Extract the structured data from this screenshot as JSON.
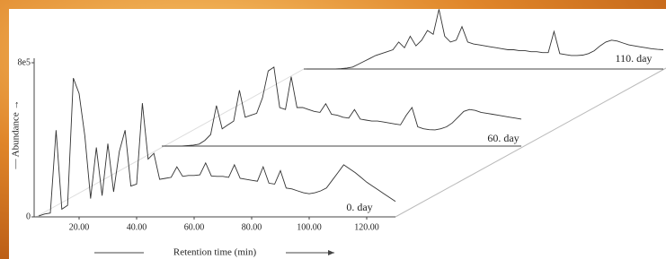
{
  "chart_data": {
    "type": "line",
    "xlabel": "Retention time (min)",
    "ylabel": "— Abundance →",
    "xlim": [
      5,
      130
    ],
    "ylim": [
      0,
      800000
    ],
    "xticks": [
      {
        "value": 20,
        "label": "20.00"
      },
      {
        "value": 40,
        "label": "40.00"
      },
      {
        "value": 60,
        "label": "60.00"
      },
      {
        "value": 80,
        "label": "80.00"
      },
      {
        "value": 100,
        "label": "100.00"
      },
      {
        "value": 120,
        "label": "120.00"
      }
    ],
    "yticks": [
      0,
      {
        "value": 800000,
        "label": "8e5"
      }
    ],
    "x": [
      6,
      8,
      10,
      12,
      14,
      16,
      18,
      20,
      22,
      24,
      26,
      28,
      30,
      32,
      34,
      36,
      38,
      40,
      42,
      44,
      46,
      48,
      50,
      52,
      54,
      56,
      58,
      60,
      62,
      64,
      66,
      68,
      70,
      72,
      74,
      76,
      78,
      80,
      82,
      84,
      86,
      88,
      90,
      92,
      94,
      96,
      98,
      100,
      102,
      104,
      106,
      108,
      110,
      112,
      114,
      116,
      118,
      120,
      122,
      124,
      126,
      128,
      130
    ],
    "series": [
      {
        "name": "0. day",
        "color": "#333333",
        "values": [
          5000,
          15000,
          20000,
          450000,
          40000,
          60000,
          720000,
          640000,
          420000,
          95000,
          360000,
          110000,
          380000,
          130000,
          340000,
          450000,
          160000,
          170000,
          590000,
          300000,
          330000,
          195000,
          200000,
          205000,
          260000,
          210000,
          215000,
          215000,
          218000,
          280000,
          212000,
          210000,
          210000,
          205000,
          270000,
          200000,
          195000,
          190000,
          185000,
          260000,
          175000,
          170000,
          240000,
          150000,
          145000,
          135000,
          125000,
          120000,
          125000,
          135000,
          150000,
          190000,
          230000,
          270000,
          250000,
          230000,
          205000,
          180000,
          160000,
          140000,
          120000,
          100000,
          80000
        ]
      },
      {
        "name": "60. day",
        "color": "#333333",
        "values": [
          0,
          0,
          0,
          0,
          3000,
          5000,
          10000,
          30000,
          60000,
          210000,
          90000,
          110000,
          130000,
          290000,
          150000,
          160000,
          170000,
          250000,
          390000,
          410000,
          200000,
          190000,
          360000,
          200000,
          200000,
          190000,
          180000,
          175000,
          220000,
          165000,
          160000,
          150000,
          145000,
          190000,
          140000,
          135000,
          130000,
          130000,
          125000,
          120000,
          115000,
          110000,
          160000,
          200000,
          100000,
          90000,
          85000,
          84000,
          90000,
          100000,
          120000,
          150000,
          180000,
          190000,
          185000,
          175000,
          170000,
          165000,
          160000,
          155000,
          150000,
          145000,
          140000
        ]
      },
      {
        "name": "110. day",
        "color": "#333333",
        "values": [
          0,
          0,
          0,
          0,
          0,
          0,
          2000,
          5000,
          10000,
          25000,
          40000,
          55000,
          70000,
          80000,
          90000,
          100000,
          140000,
          110000,
          170000,
          120000,
          150000,
          200000,
          180000,
          310000,
          170000,
          140000,
          150000,
          220000,
          140000,
          130000,
          125000,
          120000,
          115000,
          110000,
          105000,
          100000,
          100000,
          95000,
          95000,
          90000,
          90000,
          85000,
          85000,
          195000,
          80000,
          75000,
          70000,
          70000,
          72000,
          80000,
          95000,
          120000,
          140000,
          150000,
          145000,
          135000,
          125000,
          120000,
          115000,
          110000,
          105000,
          102000,
          100000
        ]
      }
    ]
  }
}
